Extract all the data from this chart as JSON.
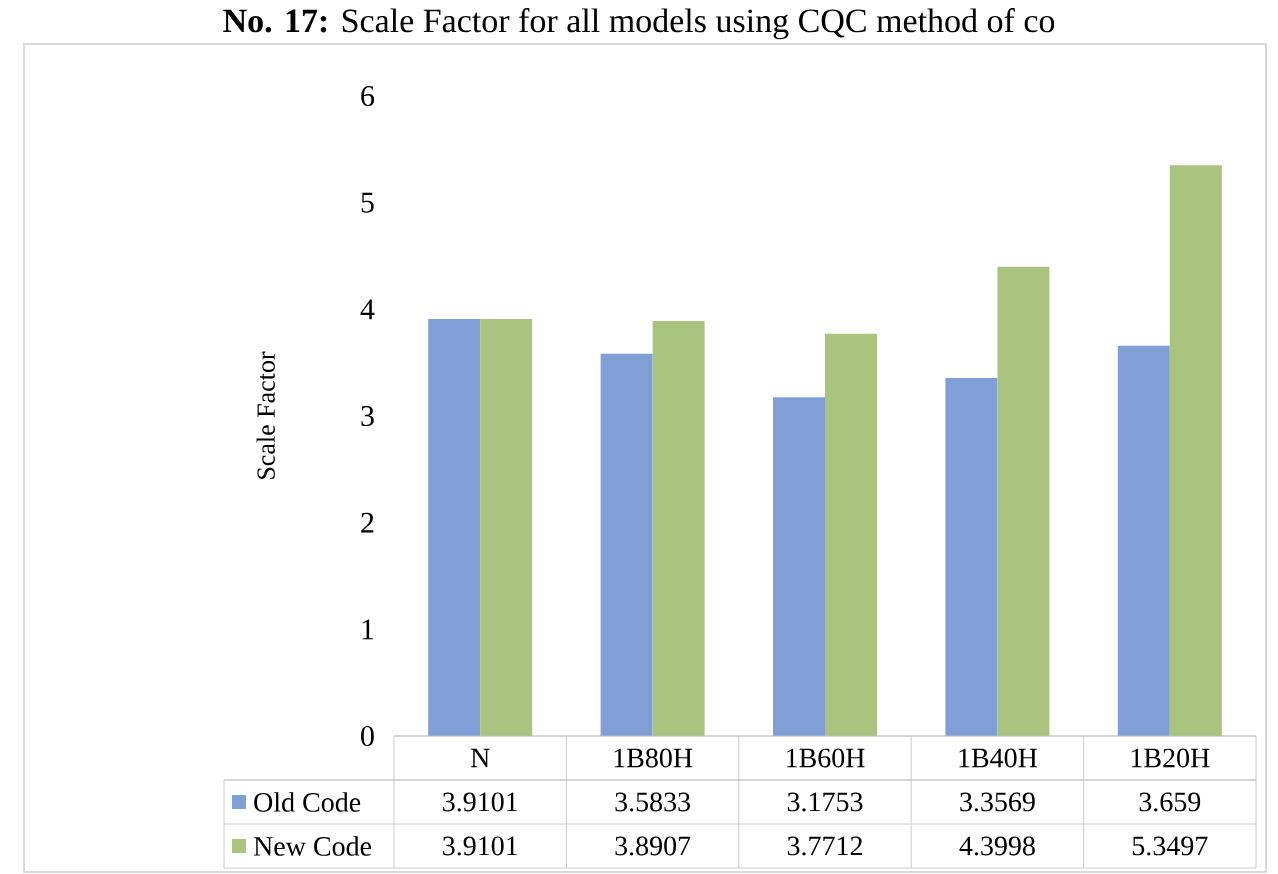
{
  "chart_data": {
    "type": "bar",
    "title": "**No. 17:** Scale Factor for all models using CQC method of co",
    "ylabel": "Scale Factor",
    "categories": [
      "N",
      "1B80H",
      "1B60H",
      "1B40H",
      "1B20H"
    ],
    "series": [
      {
        "name": "Old Code",
        "color": "#7f9fd6",
        "values": [
          3.9101,
          3.5833,
          3.1753,
          3.3569,
          3.659
        ],
        "value_labels": [
          "3.9101",
          "3.5833",
          "3.1753",
          "3.3569",
          "3.659"
        ]
      },
      {
        "name": "New Code",
        "color": "#a9c47e",
        "values": [
          3.9101,
          3.8907,
          3.7712,
          4.3998,
          5.3497
        ],
        "value_labels": [
          "3.9101",
          "3.8907",
          "3.7712",
          "4.3998",
          "5.3497"
        ]
      }
    ],
    "ylim": [
      0,
      6
    ],
    "yticks": [
      0,
      1,
      2,
      3,
      4,
      5,
      6
    ],
    "legend": "bottom",
    "grid": false
  }
}
